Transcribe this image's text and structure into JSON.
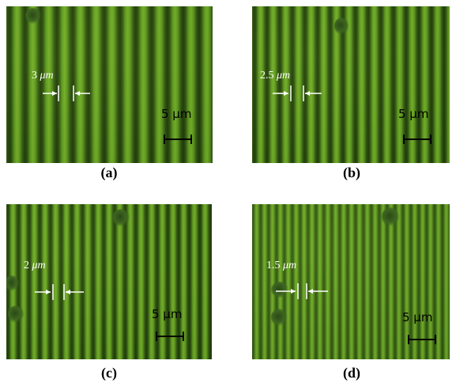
{
  "panels": {
    "a": {
      "caption": "(a)",
      "spacing_value": "3",
      "spacing_unit": "μm",
      "scale_bar": "5 μm"
    },
    "b": {
      "caption": "(b)",
      "spacing_value": "2.5",
      "spacing_unit": "μm",
      "scale_bar": "5 μm"
    },
    "c": {
      "caption": "(c)",
      "spacing_value": "2",
      "spacing_unit": "μm",
      "scale_bar": "5 μm"
    },
    "d": {
      "caption": "(d)",
      "spacing_value": "1.5",
      "spacing_unit": "μm",
      "scale_bar": "5 μm"
    }
  },
  "colors": {
    "stripe_bright": "#76b22a",
    "stripe_dark": "#1f3a0a",
    "annotation": "#ffffff",
    "scale_bar": "#000000"
  }
}
